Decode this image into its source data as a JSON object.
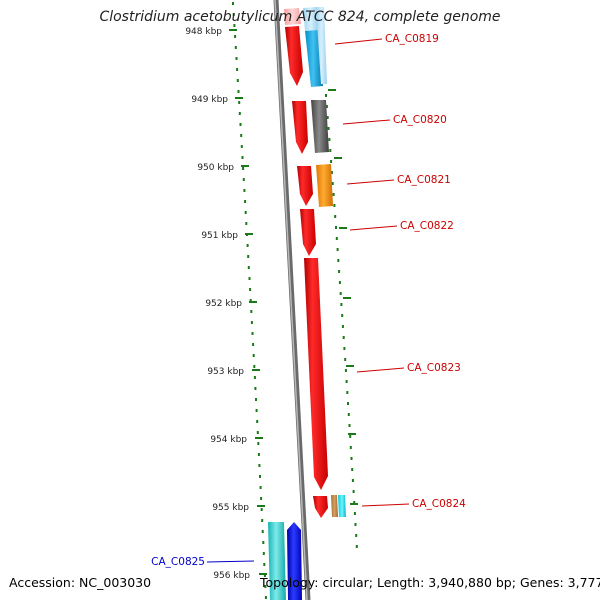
{
  "title": "Clostridium acetobutylicum ATCC 824, complete genome",
  "footer": {
    "accession_label": "Accession:",
    "accession": "NC_003030",
    "topology_label": "Topology:",
    "topology": "circular",
    "length_label": "Length:",
    "length": "3,940,880 bp",
    "genes_label": "Genes:",
    "genes": "3,777"
  },
  "colors": {
    "backbone": "#8a8a8a",
    "ruler_dots": "#1a7a1a",
    "gene_label_red": "#cc0000",
    "gene_label_blue": "#0000cc",
    "forward_gene": "#ee1111",
    "reverse_gene": "#00bcd4"
  },
  "ruler_ticks": [
    "948 kbp",
    "949 kbp",
    "950 kbp",
    "951 kbp",
    "952 kbp",
    "953 kbp",
    "954 kbp",
    "955 kbp",
    "956 kbp"
  ],
  "genes": [
    {
      "id": "CA_C0819",
      "strand": "forward"
    },
    {
      "id": "CA_C0820",
      "strand": "forward"
    },
    {
      "id": "CA_C0821",
      "strand": "forward"
    },
    {
      "id": "CA_C0822",
      "strand": "forward"
    },
    {
      "id": "CA_C0823",
      "strand": "forward"
    },
    {
      "id": "CA_C0824",
      "strand": "forward"
    },
    {
      "id": "CA_C0825",
      "strand": "reverse"
    }
  ]
}
